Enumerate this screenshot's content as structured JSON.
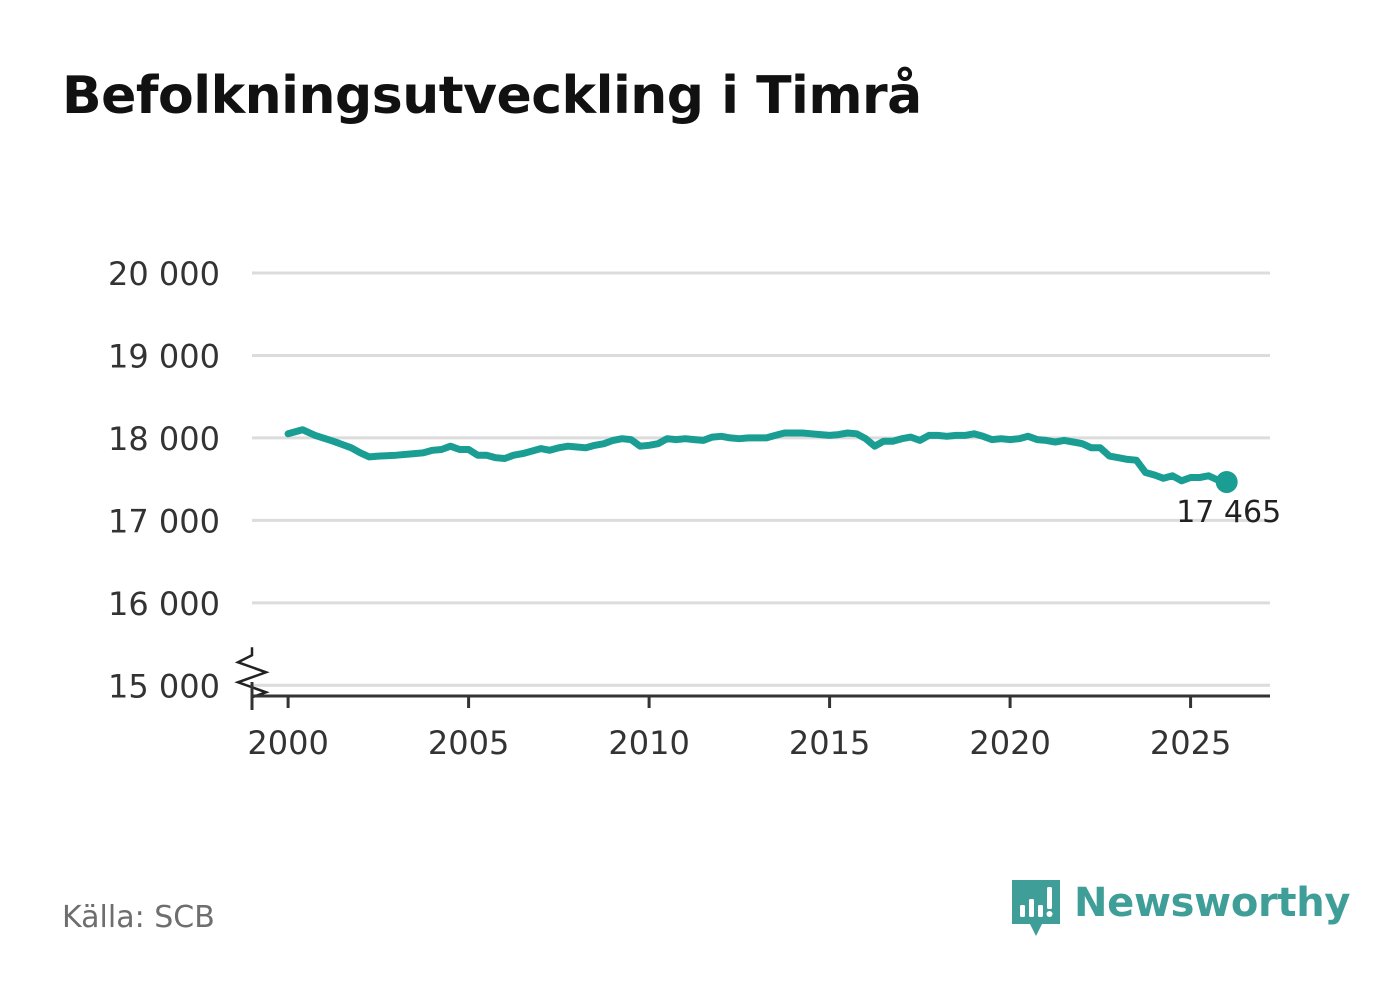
{
  "title": "Befolkningsutveckling i Timrå",
  "source": "Källa: SCB",
  "brand": {
    "name": "Newsworthy",
    "icon": "newsworthy-logo-icon",
    "color": "#3f9e98"
  },
  "chart_data": {
    "type": "line",
    "title": "Befolkningsutveckling i Timrå",
    "xlabel": "",
    "ylabel": "",
    "xlim": [
      1999,
      2027.2
    ],
    "ylim": [
      14870,
      20000
    ],
    "y_axis_break": true,
    "grid": true,
    "line_color": "#1a9e94",
    "x_ticks": [
      {
        "value": 2000,
        "label": "2000"
      },
      {
        "value": 2005,
        "label": "2005"
      },
      {
        "value": 2010,
        "label": "2010"
      },
      {
        "value": 2015,
        "label": "2015"
      },
      {
        "value": 2020,
        "label": "2020"
      },
      {
        "value": 2025,
        "label": "2025"
      }
    ],
    "y_ticks": [
      {
        "value": 15000,
        "label": "15 000"
      },
      {
        "value": 16000,
        "label": "16 000"
      },
      {
        "value": 17000,
        "label": "17 000"
      },
      {
        "value": 18000,
        "label": "18 000"
      },
      {
        "value": 19000,
        "label": "19 000"
      },
      {
        "value": 20000,
        "label": "20 000"
      }
    ],
    "end_label": "17 465",
    "series": [
      {
        "name": "",
        "x": [
          2000.0,
          2000.4,
          2000.75,
          2001.25,
          2001.5,
          2001.75,
          2002.0,
          2002.25,
          2002.5,
          2003.0,
          2003.5,
          2003.75,
          2004.0,
          2004.25,
          2004.5,
          2004.75,
          2005.0,
          2005.25,
          2005.5,
          2005.75,
          2006.0,
          2006.25,
          2006.5,
          2006.75,
          2007.0,
          2007.25,
          2007.5,
          2007.75,
          2008.0,
          2008.25,
          2008.5,
          2008.75,
          2009.0,
          2009.25,
          2009.5,
          2009.75,
          2010.0,
          2010.25,
          2010.5,
          2010.75,
          2011.0,
          2011.25,
          2011.5,
          2011.75,
          2012.0,
          2012.25,
          2012.5,
          2012.75,
          2013.0,
          2013.25,
          2013.5,
          2013.75,
          2014.0,
          2014.25,
          2014.5,
          2014.75,
          2015.0,
          2015.25,
          2015.5,
          2015.75,
          2016.0,
          2016.25,
          2016.5,
          2016.75,
          2017.0,
          2017.25,
          2017.5,
          2017.75,
          2018.0,
          2018.25,
          2018.5,
          2018.75,
          2019.0,
          2019.25,
          2019.5,
          2019.75,
          2020.0,
          2020.25,
          2020.5,
          2020.75,
          2021.0,
          2021.25,
          2021.5,
          2021.75,
          2022.0,
          2022.25,
          2022.5,
          2022.75,
          2023.0,
          2023.25,
          2023.5,
          2023.75,
          2024.0,
          2024.25,
          2024.5,
          2024.75,
          2025.0,
          2025.25,
          2025.5,
          2025.75,
          2026.0
        ],
        "y": [
          18050,
          18100,
          18030,
          17960,
          17920,
          17880,
          17820,
          17770,
          17780,
          17790,
          17810,
          17820,
          17850,
          17860,
          17900,
          17860,
          17860,
          17790,
          17790,
          17760,
          17750,
          17790,
          17810,
          17840,
          17870,
          17850,
          17880,
          17900,
          17890,
          17880,
          17910,
          17930,
          17970,
          17990,
          17980,
          17900,
          17910,
          17930,
          17990,
          17980,
          17990,
          17980,
          17970,
          18010,
          18020,
          18000,
          17990,
          18000,
          18000,
          18000,
          18030,
          18060,
          18060,
          18060,
          18050,
          18040,
          18030,
          18040,
          18060,
          18050,
          17990,
          17900,
          17960,
          17960,
          17990,
          18010,
          17970,
          18030,
          18030,
          18020,
          18030,
          18030,
          18050,
          18020,
          17980,
          17990,
          17980,
          17990,
          18020,
          17980,
          17970,
          17950,
          17970,
          17950,
          17930,
          17880,
          17880,
          17780,
          17760,
          17740,
          17730,
          17580,
          17550,
          17510,
          17540,
          17480,
          17520,
          17520,
          17540,
          17490,
          17465
        ]
      }
    ]
  }
}
